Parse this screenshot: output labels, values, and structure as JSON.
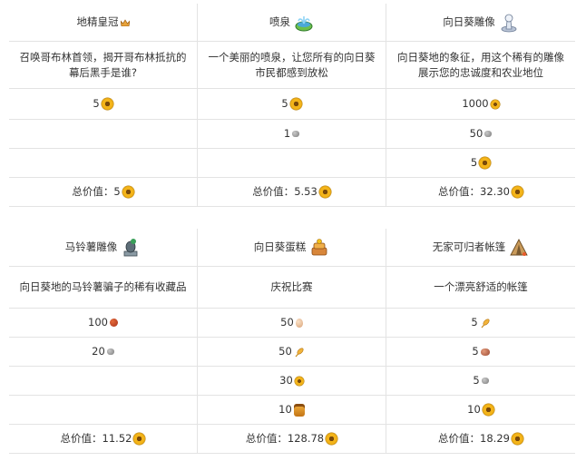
{
  "table1": {
    "headers": [
      {
        "label": "地精皇冠",
        "icon": "crown-icon"
      },
      {
        "label": "喷泉",
        "icon": "fountain-icon"
      },
      {
        "label": "向日葵雕像",
        "icon": "statue-icon"
      }
    ],
    "descriptions": [
      "召唤哥布林首领，揭开哥布林抵抗的幕后黑手是谁?",
      "一个美丽的喷泉，让您所有的向日葵市民都感到放松",
      "向日葵地的象征，用这个稀有的雕像展示您的忠诚度和农业地位"
    ],
    "costs": [
      [
        {
          "amount": "5",
          "icon": "sunflower-icon"
        }
      ],
      [
        {
          "amount": "5",
          "icon": "sunflower-icon"
        },
        {
          "amount": "1",
          "icon": "stone-icon"
        }
      ],
      [
        {
          "amount": "1000",
          "icon": "sunflower-icon"
        },
        {
          "amount": "50",
          "icon": "stone-icon"
        },
        {
          "amount": "5",
          "icon": "sunflower-icon"
        }
      ]
    ],
    "totals": [
      {
        "prefix": "总价值：",
        "value": "5"
      },
      {
        "prefix": "总价值：",
        "value": "5.53"
      },
      {
        "prefix": "总价值：",
        "value": "32.30"
      }
    ]
  },
  "table2": {
    "headers": [
      {
        "label": "马铃薯雕像",
        "icon": "potato-statue-icon"
      },
      {
        "label": "向日葵蛋糕",
        "icon": "cake-icon"
      },
      {
        "label": "无家可归者帐篷",
        "icon": "tent-icon"
      }
    ],
    "descriptions": [
      "向日葵地的马铃薯骗子的稀有收藏品",
      "庆祝比赛",
      "一个漂亮舒适的帐篷"
    ],
    "costs": [
      [
        {
          "amount": "100",
          "icon": "coffee-icon"
        },
        {
          "amount": "20",
          "icon": "stone-icon"
        }
      ],
      [
        {
          "amount": "50",
          "icon": "egg-icon"
        },
        {
          "amount": "50",
          "icon": "wheat-icon"
        },
        {
          "amount": "30",
          "icon": "sunflower-icon"
        },
        {
          "amount": "10",
          "icon": "honey-icon"
        }
      ],
      [
        {
          "amount": "5",
          "icon": "wheat-icon"
        },
        {
          "amount": "5",
          "icon": "bean-icon"
        },
        {
          "amount": "5",
          "icon": "stone-icon"
        },
        {
          "amount": "10",
          "icon": "sunflower-icon"
        }
      ]
    ],
    "totals": [
      {
        "prefix": "总价值：",
        "value": "11.52"
      },
      {
        "prefix": "总价值：",
        "value": "128.78"
      },
      {
        "prefix": "总价值：",
        "value": "18.29"
      }
    ]
  }
}
